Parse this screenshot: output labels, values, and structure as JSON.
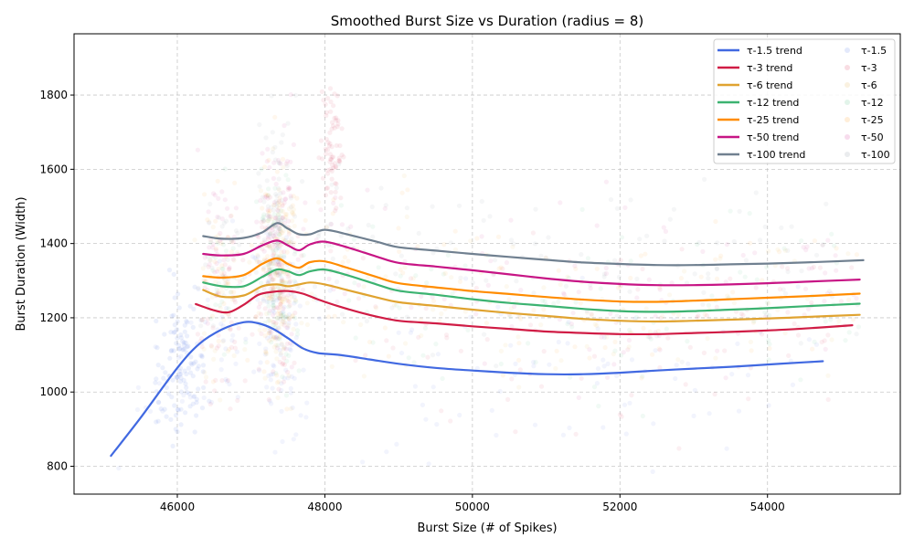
{
  "chart_data": {
    "type": "line",
    "title": "Smoothed Burst Size vs Duration (radius = 8)",
    "xlabel": "Burst Size (# of Spikes)",
    "ylabel": "Burst Duration (Width)",
    "xlim": [
      44600,
      55800
    ],
    "ylim": [
      725,
      1965
    ],
    "xticks": [
      46000,
      48000,
      50000,
      52000,
      54000
    ],
    "yticks": [
      800,
      1000,
      1200,
      1400,
      1600,
      1800
    ],
    "grid": true,
    "legend_position": "top-right",
    "legend_columns": 2,
    "series": [
      {
        "name": "τ-1.5 trend",
        "kind": "trend",
        "color": "#4169e1",
        "x": [
          45100,
          45500,
          46000,
          46300,
          46600,
          46900,
          47100,
          47300,
          47500,
          47700,
          47900,
          48200,
          48600,
          49000,
          49500,
          50000,
          50500,
          51000,
          51500,
          52000,
          52500,
          53000,
          53500,
          54000,
          54500,
          54750
        ],
        "y": [
          828,
          930,
          1065,
          1130,
          1168,
          1188,
          1185,
          1170,
          1145,
          1118,
          1105,
          1100,
          1088,
          1076,
          1065,
          1058,
          1052,
          1048,
          1048,
          1052,
          1058,
          1063,
          1068,
          1074,
          1080,
          1083
        ]
      },
      {
        "name": "τ-3 trend",
        "kind": "trend",
        "color": "#d01c45",
        "x": [
          46250,
          46500,
          46700,
          46900,
          47100,
          47300,
          47500,
          47700,
          47900,
          48200,
          48600,
          49000,
          49500,
          50000,
          50500,
          51000,
          51500,
          52000,
          52500,
          53000,
          53500,
          54000,
          54500,
          55150
        ],
        "y": [
          1237,
          1220,
          1215,
          1235,
          1262,
          1270,
          1272,
          1265,
          1250,
          1230,
          1208,
          1192,
          1185,
          1177,
          1170,
          1163,
          1159,
          1156,
          1156,
          1159,
          1162,
          1166,
          1171,
          1180
        ]
      },
      {
        "name": "τ-6 trend",
        "kind": "trend",
        "color": "#e0a330",
        "x": [
          46350,
          46600,
          46900,
          47150,
          47350,
          47500,
          47650,
          47800,
          48000,
          48300,
          48700,
          49000,
          49500,
          50000,
          50500,
          51000,
          51500,
          52000,
          52500,
          53000,
          53500,
          54000,
          54500,
          55250
        ],
        "y": [
          1275,
          1257,
          1260,
          1285,
          1290,
          1285,
          1290,
          1295,
          1290,
          1275,
          1255,
          1242,
          1232,
          1222,
          1213,
          1205,
          1197,
          1192,
          1190,
          1192,
          1195,
          1198,
          1202,
          1208
        ]
      },
      {
        "name": "τ-12 trend",
        "kind": "trend",
        "color": "#3cb371",
        "x": [
          46350,
          46600,
          46900,
          47150,
          47350,
          47500,
          47650,
          47800,
          48000,
          48300,
          48700,
          49000,
          49500,
          50000,
          50500,
          51000,
          51500,
          52000,
          52500,
          53000,
          53500,
          54000,
          54500,
          55250
        ],
        "y": [
          1295,
          1285,
          1285,
          1310,
          1330,
          1325,
          1315,
          1325,
          1330,
          1315,
          1290,
          1273,
          1262,
          1250,
          1240,
          1232,
          1224,
          1218,
          1216,
          1218,
          1222,
          1226,
          1231,
          1238
        ]
      },
      {
        "name": "τ-25 trend",
        "kind": "trend",
        "color": "#ff8c00",
        "x": [
          46350,
          46600,
          46900,
          47150,
          47350,
          47500,
          47650,
          47800,
          48000,
          48300,
          48700,
          49000,
          49500,
          50000,
          50500,
          51000,
          51500,
          52000,
          52500,
          53000,
          53500,
          54000,
          54500,
          55250
        ],
        "y": [
          1312,
          1308,
          1315,
          1345,
          1360,
          1345,
          1335,
          1350,
          1352,
          1335,
          1310,
          1293,
          1282,
          1272,
          1264,
          1256,
          1249,
          1244,
          1243,
          1246,
          1250,
          1254,
          1258,
          1265
        ]
      },
      {
        "name": "τ-50 trend",
        "kind": "trend",
        "color": "#c71585",
        "x": [
          46350,
          46600,
          46900,
          47150,
          47350,
          47500,
          47650,
          47800,
          48000,
          48300,
          48700,
          49000,
          49500,
          50000,
          50500,
          51000,
          51500,
          52000,
          52500,
          53000,
          53500,
          54000,
          54500,
          55250
        ],
        "y": [
          1372,
          1368,
          1372,
          1395,
          1408,
          1395,
          1382,
          1398,
          1405,
          1390,
          1365,
          1348,
          1338,
          1328,
          1317,
          1306,
          1297,
          1291,
          1288,
          1288,
          1290,
          1293,
          1297,
          1303
        ]
      },
      {
        "name": "τ-100 trend",
        "kind": "trend",
        "color": "#708090",
        "x": [
          46350,
          46600,
          46900,
          47150,
          47350,
          47500,
          47650,
          47800,
          48000,
          48300,
          48700,
          49000,
          49500,
          50000,
          50500,
          51000,
          51500,
          52000,
          52500,
          53000,
          53500,
          54000,
          54500,
          55300
        ],
        "y": [
          1420,
          1413,
          1415,
          1430,
          1455,
          1440,
          1425,
          1425,
          1437,
          1425,
          1405,
          1390,
          1381,
          1372,
          1364,
          1356,
          1349,
          1345,
          1342,
          1342,
          1344,
          1346,
          1349,
          1355
        ]
      },
      {
        "name": "τ-1.5",
        "kind": "scatter",
        "color": "#4169e1",
        "x": [],
        "y": []
      },
      {
        "name": "τ-3",
        "kind": "scatter",
        "color": "#d01c45",
        "x": [],
        "y": []
      },
      {
        "name": "τ-6",
        "kind": "scatter",
        "color": "#e0a330",
        "x": [],
        "y": []
      },
      {
        "name": "τ-12",
        "kind": "scatter",
        "color": "#3cb371",
        "x": [],
        "y": []
      },
      {
        "name": "τ-25",
        "kind": "scatter",
        "color": "#ff8c00",
        "x": [],
        "y": []
      },
      {
        "name": "τ-50",
        "kind": "scatter",
        "color": "#c71585",
        "x": [],
        "y": []
      },
      {
        "name": "τ-100",
        "kind": "scatter",
        "color": "#708090",
        "x": [],
        "y": []
      }
    ]
  }
}
